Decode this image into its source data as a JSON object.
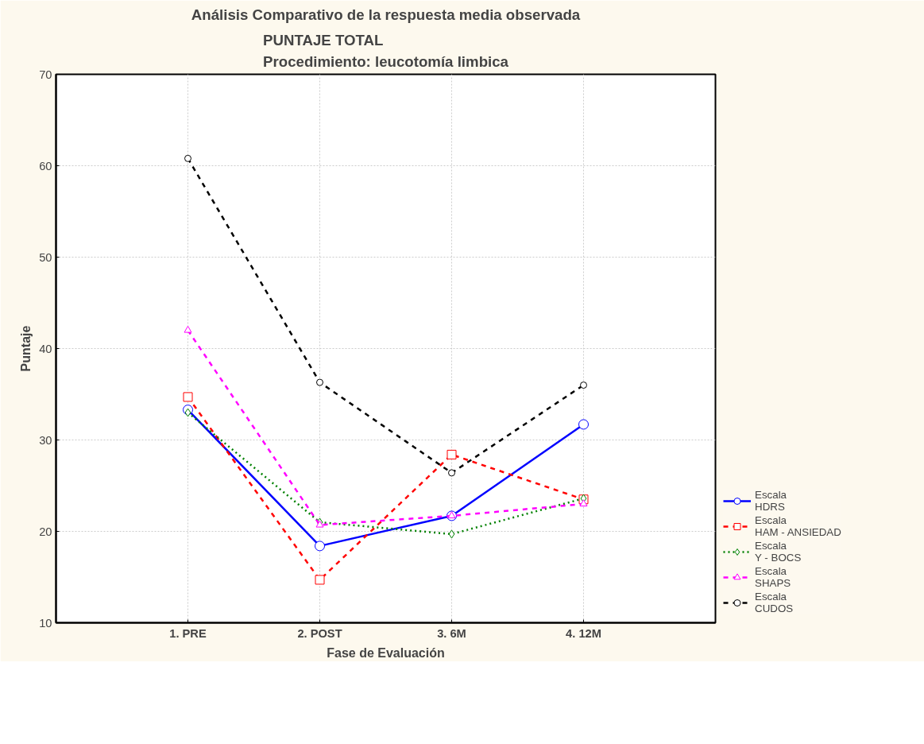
{
  "chart_data": {
    "type": "line",
    "title": "Análisis Comparativo de la respuesta media observada",
    "subtitle": "PUNTAJE TOTAL\nProcedimiento: leucotomía limbica",
    "xlabel": "Fase de Evaluación",
    "ylabel": "Puntaje",
    "categories": [
      "1. PRE",
      "2. POST",
      "3. 6M",
      "4. 12M"
    ],
    "ylim": [
      10,
      70
    ],
    "yticks": [
      10,
      20,
      30,
      40,
      50,
      60,
      70
    ],
    "grid": true,
    "legend": "bottom right",
    "series": [
      {
        "name": "Escala\nHDRS",
        "color": "#0000ff",
        "values": [
          33.3,
          18.4,
          21.7,
          31.7
        ],
        "marker": "circle",
        "line_style": "solid"
      },
      {
        "name": "Escala\nHAM - ANSIEDAD",
        "color": "#ff0000",
        "values": [
          34.7,
          14.7,
          28.4,
          23.5
        ],
        "marker": "square",
        "line_style": "dashed"
      },
      {
        "name": "Escala\nY - BOCS",
        "color": "#008000",
        "values": [
          33.0,
          21.0,
          19.7,
          23.6
        ],
        "marker": "diamond",
        "line_style": "dotted"
      },
      {
        "name": "Escala\nSHAPS",
        "color": "#ff00ff",
        "values": [
          42.0,
          20.7,
          21.7,
          23.0
        ],
        "marker": "triangle",
        "line_style": "dashed"
      },
      {
        "name": "Escala\nCUDOS",
        "color": "#000000",
        "values": [
          60.8,
          36.3,
          26.4,
          36.0
        ],
        "marker": "circle",
        "line_style": "dashed"
      }
    ]
  }
}
